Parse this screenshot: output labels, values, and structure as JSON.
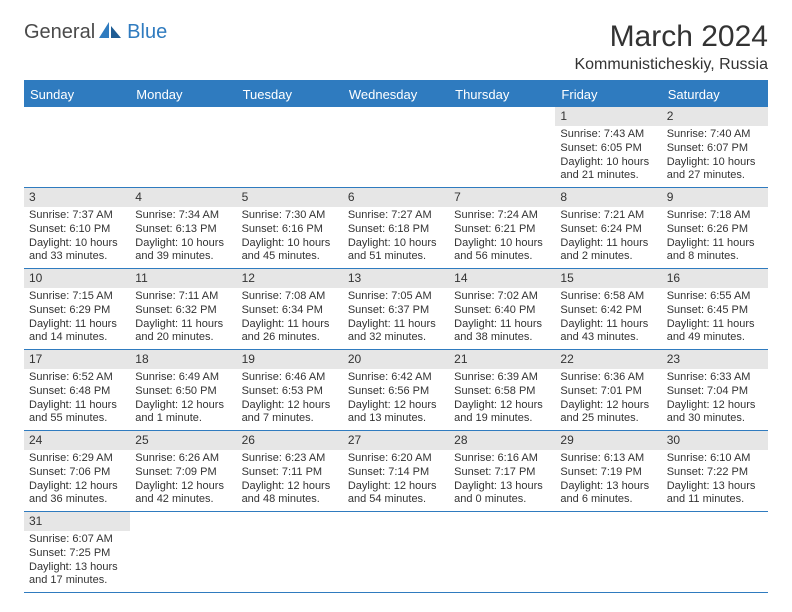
{
  "logo": {
    "part1": "General",
    "part2": "Blue"
  },
  "title": {
    "month": "March 2024",
    "location": "Kommunisticheskiy, Russia"
  },
  "colors": {
    "accent": "#2f7bbf",
    "daynum_bg": "#e6e6e6",
    "text": "#333333",
    "bg": "#ffffff"
  },
  "weekdays": [
    "Sunday",
    "Monday",
    "Tuesday",
    "Wednesday",
    "Thursday",
    "Friday",
    "Saturday"
  ],
  "cal": {
    "rows": [
      [
        null,
        null,
        null,
        null,
        null,
        {
          "n": "1",
          "sr": "Sunrise: 7:43 AM",
          "ss": "Sunset: 6:05 PM",
          "d1": "Daylight: 10 hours",
          "d2": "and 21 minutes."
        },
        {
          "n": "2",
          "sr": "Sunrise: 7:40 AM",
          "ss": "Sunset: 6:07 PM",
          "d1": "Daylight: 10 hours",
          "d2": "and 27 minutes."
        }
      ],
      [
        {
          "n": "3",
          "sr": "Sunrise: 7:37 AM",
          "ss": "Sunset: 6:10 PM",
          "d1": "Daylight: 10 hours",
          "d2": "and 33 minutes."
        },
        {
          "n": "4",
          "sr": "Sunrise: 7:34 AM",
          "ss": "Sunset: 6:13 PM",
          "d1": "Daylight: 10 hours",
          "d2": "and 39 minutes."
        },
        {
          "n": "5",
          "sr": "Sunrise: 7:30 AM",
          "ss": "Sunset: 6:16 PM",
          "d1": "Daylight: 10 hours",
          "d2": "and 45 minutes."
        },
        {
          "n": "6",
          "sr": "Sunrise: 7:27 AM",
          "ss": "Sunset: 6:18 PM",
          "d1": "Daylight: 10 hours",
          "d2": "and 51 minutes."
        },
        {
          "n": "7",
          "sr": "Sunrise: 7:24 AM",
          "ss": "Sunset: 6:21 PM",
          "d1": "Daylight: 10 hours",
          "d2": "and 56 minutes."
        },
        {
          "n": "8",
          "sr": "Sunrise: 7:21 AM",
          "ss": "Sunset: 6:24 PM",
          "d1": "Daylight: 11 hours",
          "d2": "and 2 minutes."
        },
        {
          "n": "9",
          "sr": "Sunrise: 7:18 AM",
          "ss": "Sunset: 6:26 PM",
          "d1": "Daylight: 11 hours",
          "d2": "and 8 minutes."
        }
      ],
      [
        {
          "n": "10",
          "sr": "Sunrise: 7:15 AM",
          "ss": "Sunset: 6:29 PM",
          "d1": "Daylight: 11 hours",
          "d2": "and 14 minutes."
        },
        {
          "n": "11",
          "sr": "Sunrise: 7:11 AM",
          "ss": "Sunset: 6:32 PM",
          "d1": "Daylight: 11 hours",
          "d2": "and 20 minutes."
        },
        {
          "n": "12",
          "sr": "Sunrise: 7:08 AM",
          "ss": "Sunset: 6:34 PM",
          "d1": "Daylight: 11 hours",
          "d2": "and 26 minutes."
        },
        {
          "n": "13",
          "sr": "Sunrise: 7:05 AM",
          "ss": "Sunset: 6:37 PM",
          "d1": "Daylight: 11 hours",
          "d2": "and 32 minutes."
        },
        {
          "n": "14",
          "sr": "Sunrise: 7:02 AM",
          "ss": "Sunset: 6:40 PM",
          "d1": "Daylight: 11 hours",
          "d2": "and 38 minutes."
        },
        {
          "n": "15",
          "sr": "Sunrise: 6:58 AM",
          "ss": "Sunset: 6:42 PM",
          "d1": "Daylight: 11 hours",
          "d2": "and 43 minutes."
        },
        {
          "n": "16",
          "sr": "Sunrise: 6:55 AM",
          "ss": "Sunset: 6:45 PM",
          "d1": "Daylight: 11 hours",
          "d2": "and 49 minutes."
        }
      ],
      [
        {
          "n": "17",
          "sr": "Sunrise: 6:52 AM",
          "ss": "Sunset: 6:48 PM",
          "d1": "Daylight: 11 hours",
          "d2": "and 55 minutes."
        },
        {
          "n": "18",
          "sr": "Sunrise: 6:49 AM",
          "ss": "Sunset: 6:50 PM",
          "d1": "Daylight: 12 hours",
          "d2": "and 1 minute."
        },
        {
          "n": "19",
          "sr": "Sunrise: 6:46 AM",
          "ss": "Sunset: 6:53 PM",
          "d1": "Daylight: 12 hours",
          "d2": "and 7 minutes."
        },
        {
          "n": "20",
          "sr": "Sunrise: 6:42 AM",
          "ss": "Sunset: 6:56 PM",
          "d1": "Daylight: 12 hours",
          "d2": "and 13 minutes."
        },
        {
          "n": "21",
          "sr": "Sunrise: 6:39 AM",
          "ss": "Sunset: 6:58 PM",
          "d1": "Daylight: 12 hours",
          "d2": "and 19 minutes."
        },
        {
          "n": "22",
          "sr": "Sunrise: 6:36 AM",
          "ss": "Sunset: 7:01 PM",
          "d1": "Daylight: 12 hours",
          "d2": "and 25 minutes."
        },
        {
          "n": "23",
          "sr": "Sunrise: 6:33 AM",
          "ss": "Sunset: 7:04 PM",
          "d1": "Daylight: 12 hours",
          "d2": "and 30 minutes."
        }
      ],
      [
        {
          "n": "24",
          "sr": "Sunrise: 6:29 AM",
          "ss": "Sunset: 7:06 PM",
          "d1": "Daylight: 12 hours",
          "d2": "and 36 minutes."
        },
        {
          "n": "25",
          "sr": "Sunrise: 6:26 AM",
          "ss": "Sunset: 7:09 PM",
          "d1": "Daylight: 12 hours",
          "d2": "and 42 minutes."
        },
        {
          "n": "26",
          "sr": "Sunrise: 6:23 AM",
          "ss": "Sunset: 7:11 PM",
          "d1": "Daylight: 12 hours",
          "d2": "and 48 minutes."
        },
        {
          "n": "27",
          "sr": "Sunrise: 6:20 AM",
          "ss": "Sunset: 7:14 PM",
          "d1": "Daylight: 12 hours",
          "d2": "and 54 minutes."
        },
        {
          "n": "28",
          "sr": "Sunrise: 6:16 AM",
          "ss": "Sunset: 7:17 PM",
          "d1": "Daylight: 13 hours",
          "d2": "and 0 minutes."
        },
        {
          "n": "29",
          "sr": "Sunrise: 6:13 AM",
          "ss": "Sunset: 7:19 PM",
          "d1": "Daylight: 13 hours",
          "d2": "and 6 minutes."
        },
        {
          "n": "30",
          "sr": "Sunrise: 6:10 AM",
          "ss": "Sunset: 7:22 PM",
          "d1": "Daylight: 13 hours",
          "d2": "and 11 minutes."
        }
      ],
      [
        {
          "n": "31",
          "sr": "Sunrise: 6:07 AM",
          "ss": "Sunset: 7:25 PM",
          "d1": "Daylight: 13 hours",
          "d2": "and 17 minutes."
        },
        null,
        null,
        null,
        null,
        null,
        null
      ]
    ]
  }
}
